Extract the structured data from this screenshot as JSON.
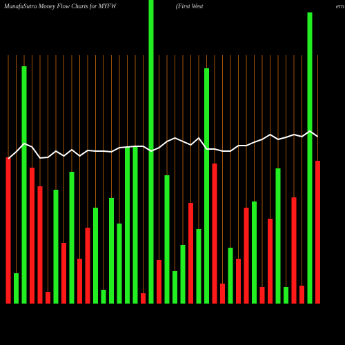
{
  "chart_data": {
    "type": "bar",
    "title": "MunafaSutra  Money Flow  Charts for MYFW",
    "subtitle": "(First West",
    "title_tail": "ern",
    "ylim": [
      0,
      440
    ],
    "categories": [
      null,
      null,
      null,
      null,
      null,
      null,
      null,
      null,
      null,
      null,
      null,
      null,
      null,
      null,
      null,
      null,
      null,
      null,
      null,
      null,
      null,
      null,
      null,
      null,
      null,
      null,
      null,
      null,
      null,
      null,
      null,
      null,
      null,
      null,
      null,
      null,
      null,
      null,
      null,
      null
    ],
    "values": [
      212,
      44,
      344,
      197,
      170,
      17,
      165,
      88,
      191,
      65,
      110,
      139,
      20,
      153,
      116,
      227,
      227,
      15,
      440,
      63,
      186,
      47,
      85,
      146,
      108,
      341,
      203,
      29,
      81,
      65,
      139,
      148,
      24,
      123,
      196,
      24,
      154,
      26,
      422,
      207
    ],
    "colors": [
      "#ff1a1a",
      "#22ee22",
      "#22ee22",
      "#ff1a1a",
      "#ff1a1a",
      "#ff1a1a",
      "#22ee22",
      "#ff1a1a",
      "#22ee22",
      "#ff1a1a",
      "#ff1a1a",
      "#22ee22",
      "#22ee22",
      "#22ee22",
      "#22ee22",
      "#22ee22",
      "#22ee22",
      "#ff1a1a",
      "#22ee22",
      "#ff1a1a",
      "#22ee22",
      "#22ee22",
      "#22ee22",
      "#ff1a1a",
      "#22ee22",
      "#22ee22",
      "#ff1a1a",
      "#ff1a1a",
      "#22ee22",
      "#ff1a1a",
      "#ff1a1a",
      "#22ee22",
      "#ff1a1a",
      "#ff1a1a",
      "#22ee22",
      "#22ee22",
      "#ff1a1a",
      "#ff1a1a",
      "#22ee22",
      "#ff1a1a"
    ],
    "line": {
      "color": "#ffffff",
      "values": [
        210,
        220,
        232,
        227,
        211,
        212,
        221,
        214,
        223,
        214,
        222,
        221,
        221,
        220,
        226,
        227,
        228,
        228,
        221,
        226,
        235,
        240,
        235,
        230,
        240,
        224,
        224,
        221,
        221,
        229,
        229,
        234,
        238,
        245,
        238,
        241,
        245,
        242,
        250,
        242
      ]
    }
  }
}
